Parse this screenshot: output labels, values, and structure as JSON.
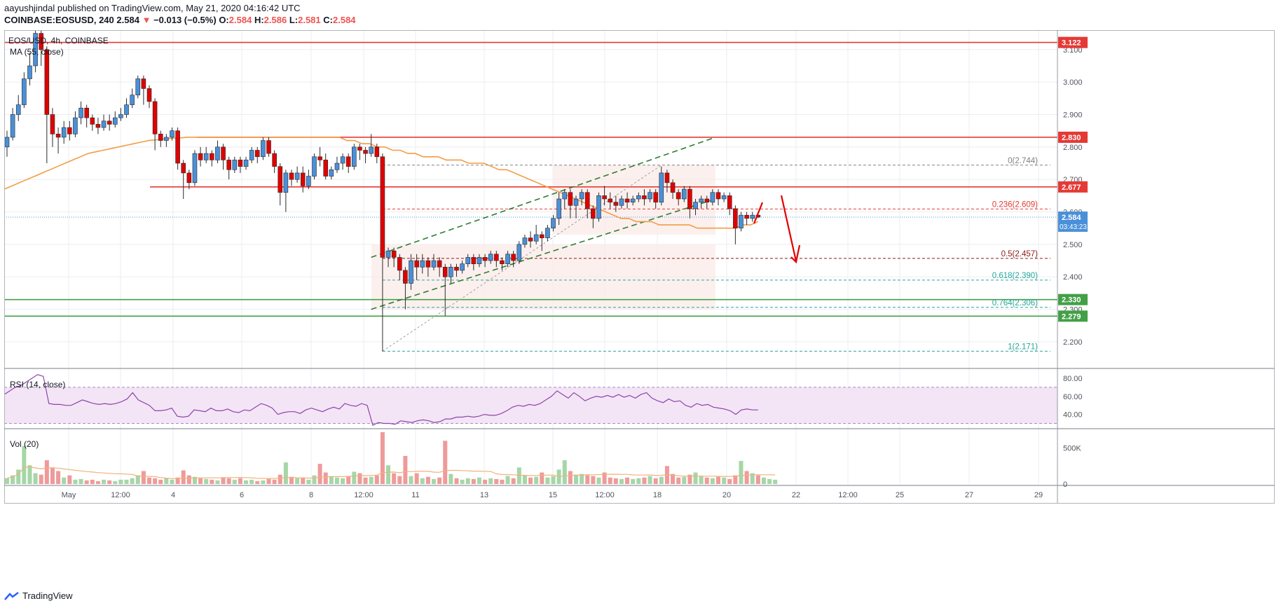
{
  "header": {
    "author": "aayushjindal",
    "published_on": "published on TradingView.com, May 21, 2020 04:16:42 UTC",
    "symbol_line": "COINBASE:EOSUSD, 240",
    "last": "2.584",
    "change": "−0.013 (−0.5%)",
    "o_label": "O:",
    "o_value": "2.584",
    "h_label": "H:",
    "h_value": "2.586",
    "l_label": "L:",
    "l_value": "2.581",
    "c_label": "C:",
    "c_value": "2.584"
  },
  "chart_data": {
    "type": "candlestick",
    "pane_title": "EOS/USD, 4h, COINBASE",
    "ma_label": "MA (55, close)",
    "ylim": [
      2.12,
      3.16
    ],
    "price_ticks": [
      "2.200",
      "2.300",
      "2.400",
      "2.500",
      "2.600",
      "2.700",
      "2.800",
      "2.900",
      "3.000",
      "3.100"
    ],
    "x_ticks": [
      "May",
      "12:00",
      "4",
      "6",
      "8",
      "12:00",
      "11",
      "13",
      "15",
      "12:00",
      "18",
      "20",
      "22",
      "12:00",
      "25",
      "27",
      "29"
    ],
    "candles": [
      [
        2.8,
        2.83,
        2.77,
        2.85
      ],
      [
        2.83,
        2.9,
        2.82,
        2.92
      ],
      [
        2.9,
        2.93,
        2.88,
        2.96
      ],
      [
        2.93,
        3.01,
        2.92,
        3.03
      ],
      [
        3.01,
        3.05,
        2.99,
        3.09
      ],
      [
        3.05,
        3.15,
        3.03,
        3.17
      ],
      [
        3.15,
        3.1,
        3.05,
        3.18
      ],
      [
        3.1,
        2.9,
        2.75,
        3.11
      ],
      [
        2.9,
        2.84,
        2.8,
        2.92
      ],
      [
        2.84,
        2.83,
        2.78,
        2.86
      ],
      [
        2.83,
        2.86,
        2.81,
        2.88
      ],
      [
        2.86,
        2.84,
        2.82,
        2.88
      ],
      [
        2.84,
        2.89,
        2.83,
        2.91
      ],
      [
        2.89,
        2.92,
        2.87,
        2.94
      ],
      [
        2.92,
        2.89,
        2.86,
        2.93
      ],
      [
        2.89,
        2.87,
        2.85,
        2.9
      ],
      [
        2.87,
        2.86,
        2.84,
        2.89
      ],
      [
        2.86,
        2.88,
        2.85,
        2.9
      ],
      [
        2.88,
        2.87,
        2.85,
        2.9
      ],
      [
        2.87,
        2.89,
        2.86,
        2.91
      ],
      [
        2.89,
        2.9,
        2.88,
        2.92
      ],
      [
        2.9,
        2.93,
        2.89,
        2.95
      ],
      [
        2.93,
        2.96,
        2.92,
        2.98
      ],
      [
        2.96,
        3.01,
        2.95,
        3.02
      ],
      [
        3.01,
        2.98,
        2.93,
        3.02
      ],
      [
        2.98,
        2.94,
        2.92,
        2.99
      ],
      [
        2.94,
        2.84,
        2.79,
        2.95
      ],
      [
        2.84,
        2.82,
        2.8,
        2.85
      ],
      [
        2.82,
        2.83,
        2.8,
        2.84
      ],
      [
        2.83,
        2.85,
        2.82,
        2.86
      ],
      [
        2.85,
        2.75,
        2.73,
        2.86
      ],
      [
        2.75,
        2.72,
        2.64,
        2.76
      ],
      [
        2.72,
        2.69,
        2.67,
        2.73
      ],
      [
        2.69,
        2.78,
        2.68,
        2.79
      ],
      [
        2.78,
        2.76,
        2.74,
        2.8
      ],
      [
        2.76,
        2.78,
        2.75,
        2.8
      ],
      [
        2.78,
        2.76,
        2.74,
        2.79
      ],
      [
        2.76,
        2.8,
        2.75,
        2.82
      ],
      [
        2.8,
        2.76,
        2.73,
        2.81
      ],
      [
        2.76,
        2.73,
        2.7,
        2.77
      ],
      [
        2.73,
        2.76,
        2.72,
        2.77
      ],
      [
        2.76,
        2.74,
        2.72,
        2.77
      ],
      [
        2.74,
        2.76,
        2.73,
        2.77
      ],
      [
        2.76,
        2.79,
        2.75,
        2.8
      ],
      [
        2.79,
        2.77,
        2.75,
        2.8
      ],
      [
        2.77,
        2.82,
        2.76,
        2.83
      ],
      [
        2.82,
        2.78,
        2.77,
        2.83
      ],
      [
        2.78,
        2.74,
        2.72,
        2.79
      ],
      [
        2.74,
        2.66,
        2.62,
        2.75
      ],
      [
        2.66,
        2.72,
        2.6,
        2.73
      ],
      [
        2.72,
        2.7,
        2.68,
        2.73
      ],
      [
        2.7,
        2.72,
        2.69,
        2.74
      ],
      [
        2.72,
        2.68,
        2.66,
        2.74
      ],
      [
        2.68,
        2.71,
        2.67,
        2.73
      ],
      [
        2.71,
        2.77,
        2.7,
        2.78
      ],
      [
        2.77,
        2.76,
        2.74,
        2.8
      ],
      [
        2.76,
        2.71,
        2.7,
        2.78
      ],
      [
        2.71,
        2.73,
        2.7,
        2.74
      ],
      [
        2.73,
        2.75,
        2.72,
        2.77
      ],
      [
        2.75,
        2.77,
        2.73,
        2.78
      ],
      [
        2.77,
        2.74,
        2.72,
        2.78
      ],
      [
        2.74,
        2.8,
        2.73,
        2.81
      ],
      [
        2.8,
        2.79,
        2.76,
        2.81
      ],
      [
        2.79,
        2.78,
        2.75,
        2.8
      ],
      [
        2.78,
        2.8,
        2.77,
        2.84
      ],
      [
        2.8,
        2.77,
        2.75,
        2.81
      ],
      [
        2.77,
        2.46,
        2.17,
        2.78
      ],
      [
        2.46,
        2.48,
        2.43,
        2.49
      ],
      [
        2.48,
        2.46,
        2.43,
        2.49
      ],
      [
        2.46,
        2.42,
        2.39,
        2.47
      ],
      [
        2.42,
        2.38,
        2.3,
        2.43
      ],
      [
        2.38,
        2.45,
        2.36,
        2.47
      ],
      [
        2.45,
        2.43,
        2.39,
        2.47
      ],
      [
        2.43,
        2.45,
        2.41,
        2.47
      ],
      [
        2.45,
        2.43,
        2.4,
        2.46
      ],
      [
        2.43,
        2.45,
        2.42,
        2.47
      ],
      [
        2.45,
        2.43,
        2.4,
        2.46
      ],
      [
        2.43,
        2.4,
        2.28,
        2.44
      ],
      [
        2.4,
        2.43,
        2.38,
        2.44
      ],
      [
        2.43,
        2.42,
        2.4,
        2.44
      ],
      [
        2.42,
        2.44,
        2.41,
        2.45
      ],
      [
        2.44,
        2.46,
        2.43,
        2.47
      ],
      [
        2.46,
        2.44,
        2.42,
        2.47
      ],
      [
        2.44,
        2.46,
        2.43,
        2.47
      ],
      [
        2.46,
        2.45,
        2.43,
        2.47
      ],
      [
        2.45,
        2.47,
        2.44,
        2.48
      ],
      [
        2.47,
        2.45,
        2.43,
        2.48
      ],
      [
        2.45,
        2.44,
        2.42,
        2.46
      ],
      [
        2.44,
        2.47,
        2.43,
        2.48
      ],
      [
        2.47,
        2.45,
        2.43,
        2.48
      ],
      [
        2.45,
        2.5,
        2.44,
        2.51
      ],
      [
        2.5,
        2.52,
        2.49,
        2.53
      ],
      [
        2.52,
        2.51,
        2.49,
        2.54
      ],
      [
        2.51,
        2.53,
        2.5,
        2.56
      ],
      [
        2.53,
        2.52,
        2.48,
        2.54
      ],
      [
        2.52,
        2.55,
        2.51,
        2.56
      ],
      [
        2.55,
        2.58,
        2.54,
        2.59
      ],
      [
        2.58,
        2.64,
        2.56,
        2.66
      ],
      [
        2.64,
        2.66,
        2.61,
        2.67
      ],
      [
        2.66,
        2.62,
        2.58,
        2.67
      ],
      [
        2.62,
        2.64,
        2.58,
        2.65
      ],
      [
        2.64,
        2.66,
        2.62,
        2.67
      ],
      [
        2.66,
        2.61,
        2.58,
        2.67
      ],
      [
        2.61,
        2.58,
        2.55,
        2.62
      ],
      [
        2.58,
        2.65,
        2.57,
        2.66
      ],
      [
        2.65,
        2.64,
        2.62,
        2.68
      ],
      [
        2.64,
        2.63,
        2.61,
        2.66
      ],
      [
        2.63,
        2.62,
        2.6,
        2.65
      ],
      [
        2.62,
        2.64,
        2.61,
        2.65
      ],
      [
        2.64,
        2.63,
        2.61,
        2.66
      ],
      [
        2.63,
        2.64,
        2.62,
        2.65
      ],
      [
        2.64,
        2.65,
        2.63,
        2.66
      ],
      [
        2.65,
        2.64,
        2.62,
        2.67
      ],
      [
        2.64,
        2.66,
        2.63,
        2.67
      ],
      [
        2.66,
        2.63,
        2.61,
        2.67
      ],
      [
        2.63,
        2.72,
        2.62,
        2.74
      ],
      [
        2.72,
        2.69,
        2.66,
        2.73
      ],
      [
        2.69,
        2.66,
        2.64,
        2.7
      ],
      [
        2.66,
        2.64,
        2.62,
        2.67
      ],
      [
        2.64,
        2.67,
        2.63,
        2.68
      ],
      [
        2.67,
        2.61,
        2.58,
        2.68
      ],
      [
        2.61,
        2.63,
        2.59,
        2.64
      ],
      [
        2.63,
        2.64,
        2.61,
        2.65
      ],
      [
        2.64,
        2.63,
        2.61,
        2.65
      ],
      [
        2.63,
        2.66,
        2.62,
        2.67
      ],
      [
        2.66,
        2.64,
        2.62,
        2.67
      ],
      [
        2.64,
        2.65,
        2.63,
        2.66
      ],
      [
        2.65,
        2.61,
        2.59,
        2.66
      ],
      [
        2.61,
        2.55,
        2.5,
        2.62
      ],
      [
        2.55,
        2.59,
        2.54,
        2.6
      ],
      [
        2.59,
        2.58,
        2.56,
        2.6
      ],
      [
        2.58,
        2.59,
        2.57,
        2.6
      ],
      [
        2.59,
        2.584,
        2.581,
        2.6
      ]
    ],
    "ma55": [
      2.67,
      2.68,
      2.69,
      2.7,
      2.71,
      2.72,
      2.73,
      2.74,
      2.75,
      2.76,
      2.77,
      2.78,
      2.785,
      2.79,
      2.795,
      2.8,
      2.805,
      2.81,
      2.815,
      2.82,
      2.822,
      2.825,
      2.827,
      2.828,
      2.83,
      2.83,
      2.83,
      2.83,
      2.83,
      2.83,
      2.83,
      2.83,
      2.83,
      2.83,
      2.83,
      2.83,
      2.83,
      2.83,
      2.83,
      2.83,
      2.83,
      2.83,
      2.83,
      2.83,
      2.83,
      2.82,
      2.82,
      2.81,
      2.81,
      2.8,
      2.8,
      2.79,
      2.79,
      2.78,
      2.78,
      2.77,
      2.77,
      2.77,
      2.76,
      2.76,
      2.76,
      2.75,
      2.75,
      2.75,
      2.74,
      2.73,
      2.73,
      2.72,
      2.71,
      2.7,
      2.69,
      2.68,
      2.67,
      2.66,
      2.65,
      2.64,
      2.63,
      2.62,
      2.61,
      2.6,
      2.59,
      2.58,
      2.58,
      2.57,
      2.57,
      2.57,
      2.56,
      2.56,
      2.56,
      2.56,
      2.56,
      2.55,
      2.55,
      2.55,
      2.55,
      2.55,
      2.55,
      2.56,
      2.56,
      2.57
    ],
    "horizontal_levels": [
      {
        "value": 3.122,
        "label": "3.122",
        "color": "#e53935"
      },
      {
        "value": 2.83,
        "label": "2.830",
        "color": "#e53935"
      },
      {
        "value": 2.677,
        "label": "2.677",
        "color": "#e53935"
      },
      {
        "value": 2.33,
        "label": "2.330",
        "color": "#43a047"
      },
      {
        "value": 2.279,
        "label": "2.279",
        "color": "#43a047"
      }
    ],
    "last_price": {
      "value": 2.584,
      "label": "2.584",
      "timer": "03:43:23",
      "color": "#4a90d9"
    },
    "fib_levels": [
      {
        "value": 2.744,
        "label": "0(2.744)",
        "color": "#808080"
      },
      {
        "value": 2.609,
        "label": "0.236(2.609)",
        "color": "#e53935"
      },
      {
        "value": 2.457,
        "label": "0.5(2.457)",
        "color": "#8b1a1a"
      },
      {
        "value": 2.39,
        "label": "0.618(2.390)",
        "color": "#26a69a"
      },
      {
        "value": 2.306,
        "label": "0.764(2.306)",
        "color": "#26a69a"
      },
      {
        "value": 2.171,
        "label": "1(2.171)",
        "color": "#26a69a"
      }
    ],
    "channel": {
      "lower_start": 2.3,
      "lower_end": 2.64,
      "upper_start": 2.46,
      "upper_end": 2.83
    },
    "rsi": {
      "title": "RSI (14, close)",
      "ticks": [
        "80.00",
        "60.00",
        "40.00"
      ],
      "ylim": [
        25,
        90
      ],
      "upper_band": 70,
      "lower_band": 30,
      "values": [
        62,
        66,
        70,
        72,
        76,
        80,
        84,
        82,
        52,
        51,
        51,
        50,
        50,
        53,
        56,
        54,
        52,
        51,
        52,
        51,
        52,
        54,
        57,
        64,
        56,
        53,
        50,
        44,
        44,
        45,
        47,
        38,
        37,
        38,
        45,
        44,
        43,
        47,
        44,
        44,
        46,
        43,
        42,
        45,
        44,
        48,
        52,
        50,
        47,
        40,
        42,
        43,
        43,
        41,
        45,
        47,
        45,
        43,
        46,
        48,
        46,
        52,
        50,
        49,
        52,
        50,
        28,
        31,
        30,
        30,
        29,
        33,
        32,
        31,
        33,
        34,
        33,
        31,
        32,
        35,
        35,
        37,
        37,
        38,
        37,
        38,
        40,
        39,
        39,
        41,
        44,
        48,
        50,
        49,
        51,
        50,
        52,
        56,
        60,
        66,
        62,
        58,
        64,
        60,
        55,
        58,
        60,
        59,
        61,
        59,
        62,
        59,
        61,
        58,
        62,
        64,
        58,
        55,
        53,
        57,
        54,
        55,
        50,
        48,
        52,
        50,
        51,
        48,
        47,
        46,
        44,
        40,
        45,
        46,
        45,
        45
      ]
    },
    "volume": {
      "title": "Vol (20)",
      "ticks": [
        "500K",
        "0"
      ],
      "max": 700,
      "values": [
        80,
        120,
        200,
        530,
        260,
        150,
        130,
        330,
        230,
        180,
        90,
        120,
        60,
        70,
        50,
        60,
        40,
        60,
        50,
        40,
        60,
        60,
        80,
        120,
        180,
        90,
        80,
        60,
        80,
        60,
        90,
        190,
        120,
        100,
        80,
        70,
        60,
        50,
        90,
        80,
        60,
        80,
        50,
        60,
        40,
        50,
        70,
        60,
        130,
        300,
        100,
        80,
        90,
        60,
        120,
        280,
        160,
        100,
        90,
        80,
        110,
        170,
        150,
        90,
        100,
        120,
        720,
        260,
        150,
        110,
        390,
        110,
        150,
        80,
        100,
        70,
        90,
        600,
        140,
        80,
        60,
        80,
        70,
        90,
        60,
        80,
        70,
        60,
        110,
        80,
        230,
        120,
        90,
        100,
        160,
        90,
        110,
        200,
        330,
        180,
        130,
        140,
        120,
        110,
        90,
        160,
        90,
        80,
        70,
        90,
        70,
        80,
        90,
        110,
        80,
        100,
        250,
        140,
        90,
        100,
        130,
        160,
        110,
        90,
        80,
        100,
        90,
        70,
        120,
        320,
        180,
        150,
        120,
        90,
        70,
        60
      ]
    },
    "annotations": {
      "brand": "TradingView"
    },
    "colors": {
      "up": "#4a90d9",
      "down": "#e00000",
      "ma": "#f39c45",
      "rsi_line": "#8e44ad",
      "rsi_band": "#f3e5f5",
      "vol_ma": "#f0b27a"
    }
  }
}
